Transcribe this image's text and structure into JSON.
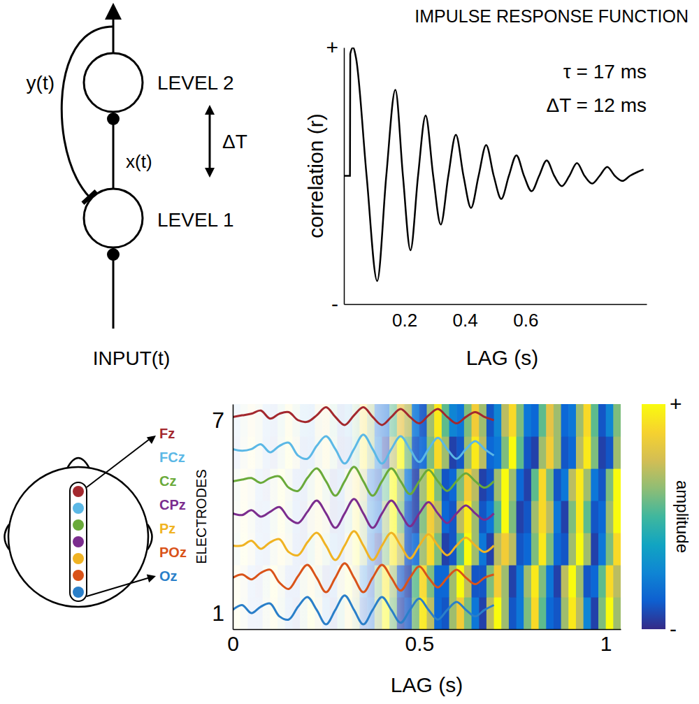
{
  "diagram": {
    "feedback": "y(t)",
    "feedforward": "x(t)",
    "delay": "ΔT",
    "level_2": "LEVEL 2",
    "level_1": "LEVEL 1",
    "input": "INPUT(t)"
  },
  "chart_data": [
    {
      "type": "line",
      "title": "IMPULSE RESPONSE FUNCTION",
      "x_label": "LAG (s)",
      "y_label": "correlation (r)",
      "annotations": [
        "τ = 17 ms",
        "ΔT = 12 ms"
      ],
      "x": [
        0,
        0.02,
        0.021,
        0.03,
        0.04,
        0.075,
        0.11,
        0.14,
        0.17,
        0.195,
        0.22,
        0.245,
        0.27,
        0.295,
        0.32,
        0.345,
        0.37,
        0.395,
        0.42,
        0.445,
        0.47,
        0.495,
        0.52,
        0.545,
        0.57,
        0.595,
        0.62,
        0.645,
        0.67,
        0.695,
        0.72,
        0.745,
        0.77,
        0.795,
        0.82,
        0.845,
        0.87,
        0.895,
        0.92,
        0.945,
        0.97,
        0.99
      ],
      "values": [
        0,
        0,
        0.95,
        1.0,
        0.92,
        0,
        -0.82,
        0,
        0.67,
        0,
        -0.58,
        0,
        0.47,
        0,
        -0.38,
        0,
        0.32,
        0,
        -0.25,
        0,
        0.24,
        0,
        -0.18,
        0,
        0.16,
        0,
        -0.12,
        0,
        0.12,
        0,
        -0.08,
        0,
        0.1,
        0,
        -0.06,
        0,
        0.07,
        0,
        -0.04,
        0,
        0.03,
        0.05
      ],
      "color": "#000000",
      "xlim": [
        0,
        1
      ],
      "xticks": [
        0.2,
        0.4,
        0.6
      ],
      "ylim": [
        -1,
        1
      ],
      "yticks": [
        {
          "value": -1,
          "label": "-"
        },
        {
          "value": 1,
          "label": "+"
        }
      ]
    },
    {
      "type": "line",
      "x_label": "LAG (s)",
      "y_label": "ELECTRODES",
      "legend": "left",
      "x": [
        0,
        0.025,
        0.05,
        0.075,
        0.1,
        0.125,
        0.15,
        0.175,
        0.2,
        0.225,
        0.25,
        0.275,
        0.3,
        0.325,
        0.35,
        0.375,
        0.4,
        0.425,
        0.45,
        0.475,
        0.5,
        0.525,
        0.55,
        0.575,
        0.6,
        0.625,
        0.65,
        0.675,
        0.7
      ],
      "series": [
        {
          "name": "Fz",
          "color": "#a3282e",
          "values": [
            7.1,
            7.15,
            7.2,
            7.3,
            7.05,
            7.2,
            7.25,
            7.0,
            6.95,
            7.15,
            7.4,
            7.1,
            6.85,
            7.15,
            7.4,
            7.1,
            6.85,
            7.1,
            7.35,
            7.1,
            6.9,
            7.15,
            7.35,
            7.1,
            6.9,
            7.1,
            7.25,
            7.1,
            7.0
          ]
        },
        {
          "name": "FCz",
          "color": "#5bb8e6",
          "values": [
            6.1,
            6.05,
            6.1,
            6.25,
            6.0,
            6.2,
            6.3,
            5.9,
            5.8,
            6.2,
            6.5,
            6.1,
            5.65,
            6.1,
            6.55,
            6.1,
            5.65,
            6.1,
            6.5,
            6.1,
            5.7,
            6.1,
            6.45,
            6.1,
            5.8,
            6.1,
            6.35,
            6.1,
            5.9
          ]
        },
        {
          "name": "Cz",
          "color": "#6aaa3a",
          "values": [
            5.1,
            5.15,
            5.2,
            5.05,
            5.2,
            5.25,
            4.9,
            4.8,
            5.2,
            5.5,
            5.1,
            4.65,
            5.1,
            5.55,
            5.1,
            4.65,
            5.1,
            5.5,
            5.1,
            4.7,
            5.1,
            5.45,
            5.1,
            4.8,
            5.1,
            5.35,
            5.1,
            4.9,
            5.1
          ]
        },
        {
          "name": "CPz",
          "color": "#7b2d8e",
          "values": [
            4.1,
            4.05,
            4.2,
            4.0,
            4.15,
            4.3,
            3.95,
            3.8,
            4.15,
            4.5,
            4.1,
            3.65,
            4.1,
            4.55,
            4.1,
            3.65,
            4.1,
            4.5,
            4.1,
            3.7,
            4.1,
            4.45,
            4.1,
            3.8,
            4.1,
            4.35,
            4.1,
            3.9,
            4.1
          ]
        },
        {
          "name": "Pz",
          "color": "#f0b323",
          "values": [
            3.1,
            3.1,
            3.25,
            3.0,
            3.2,
            3.3,
            2.9,
            2.8,
            3.2,
            3.5,
            3.1,
            2.65,
            3.1,
            3.55,
            3.1,
            2.65,
            3.1,
            3.5,
            3.1,
            2.7,
            3.1,
            3.45,
            3.1,
            2.8,
            3.1,
            3.35,
            3.1,
            2.9,
            3.1
          ]
        },
        {
          "name": "POz",
          "color": "#d95319",
          "values": [
            2.1,
            2.2,
            2.05,
            2.25,
            2.35,
            1.95,
            1.75,
            2.15,
            2.5,
            2.1,
            1.65,
            2.1,
            2.55,
            2.1,
            1.65,
            2.1,
            2.5,
            2.1,
            1.7,
            2.1,
            2.45,
            2.1,
            1.8,
            2.1,
            2.35,
            2.1,
            1.9,
            2.1,
            2.2
          ]
        },
        {
          "name": "Oz",
          "color": "#2a7fc9",
          "values": [
            1.1,
            1.25,
            1.0,
            1.2,
            1.3,
            0.9,
            0.8,
            1.2,
            1.5,
            1.1,
            0.65,
            1.1,
            1.55,
            1.1,
            0.65,
            1.1,
            1.5,
            1.1,
            0.7,
            1.1,
            1.45,
            1.1,
            0.8,
            1.1,
            1.35,
            1.1,
            0.9,
            1.1,
            1.25
          ]
        }
      ],
      "xlim": [
        0,
        1.04
      ],
      "xticks": [
        0,
        0.5,
        1
      ],
      "ylim": [
        0.5,
        7.5
      ],
      "yticks": [
        1,
        7
      ],
      "heatmap": {
        "x_edges": [
          0,
          0.02,
          0.04,
          0.06,
          0.08,
          0.1,
          0.12,
          0.14,
          0.16,
          0.18,
          0.2,
          0.22,
          0.24,
          0.26,
          0.28,
          0.3,
          0.32,
          0.34,
          0.36,
          0.38,
          0.4,
          0.42,
          0.44,
          0.46,
          0.48,
          0.5,
          0.52,
          0.54,
          0.56,
          0.58,
          0.6,
          0.62,
          0.64,
          0.66,
          0.68,
          0.7,
          0.72,
          0.74,
          0.76,
          0.78,
          0.8,
          0.82,
          0.84,
          0.86,
          0.88,
          0.9,
          0.92,
          0.94,
          0.96,
          0.98,
          1,
          1.02,
          1.04
        ],
        "y": [
          1,
          2,
          3,
          4,
          5,
          6,
          7
        ],
        "values": [
          [
            1.0,
            0.3,
            -0.8,
            -0.8,
            0.3,
            0.9,
            0.2,
            -0.7,
            -0.9,
            0.2,
            1.0,
            0.4,
            -0.6,
            -0.9,
            0.1,
            0.8,
            0.3,
            -0.8,
            -0.7,
            0.3,
            1.0,
            0.2,
            -0.9,
            -0.8,
            0.2,
            0.9,
            0.4,
            -0.7,
            -0.8,
            0.3,
            0.7,
            0.2,
            -0.6,
            -0.9,
            0.4,
            1.0,
            0.3,
            -0.8,
            -0.6,
            0.2,
            0.8,
            0.1,
            -0.7,
            -0.8,
            0.3,
            0.9,
            0.4,
            -0.5,
            -0.9,
            0.2,
            1.0,
            0.3
          ],
          [
            0.9,
            0.4,
            -0.7,
            -0.9,
            0.2,
            1.0,
            0.3,
            -0.8,
            -0.8,
            0.3,
            0.8,
            0.2,
            -0.9,
            -0.7,
            0.4,
            1.0,
            0.4,
            -0.6,
            -0.8,
            0.2,
            0.9,
            0.3,
            -0.8,
            -0.9,
            0.1,
            0.8,
            0.2,
            -0.7,
            -0.7,
            0.3,
            1.0,
            0.4,
            -0.8,
            -0.8,
            0.2,
            0.7,
            0.3,
            -0.9,
            -0.6,
            0.3,
            0.9,
            0.2,
            -0.6,
            -0.9,
            0.4,
            1.0,
            0.3,
            -0.8,
            -0.7,
            0.1,
            0.8,
            0.4
          ],
          [
            0.2,
            1.0,
            0.4,
            -0.7,
            -0.8,
            0.3,
            0.9,
            0.3,
            -0.8,
            -0.9,
            0.1,
            0.8,
            0.2,
            -0.6,
            -0.8,
            0.4,
            1.0,
            0.3,
            -0.7,
            -0.9,
            0.2,
            0.9,
            0.4,
            -0.8,
            -0.7,
            0.3,
            0.8,
            0.2,
            -0.9,
            -0.8,
            0.1,
            1.0,
            0.3,
            -0.6,
            -0.9,
            0.4,
            0.7,
            0.4,
            -0.8,
            -0.7,
            0.2,
            0.9,
            0.2,
            -0.7,
            -0.8,
            0.3,
            1.0,
            0.3,
            -0.9,
            -0.6,
            0.2,
            0.8
          ],
          [
            0.3,
            0.9,
            0.3,
            -0.8,
            -0.7,
            0.2,
            1.0,
            0.2,
            -0.7,
            -0.9,
            0.4,
            0.8,
            0.4,
            -0.9,
            -0.8,
            0.1,
            0.9,
            0.3,
            -0.6,
            -0.7,
            0.3,
            1.0,
            0.2,
            -0.8,
            -0.9,
            0.2,
            0.7,
            0.4,
            -0.7,
            -0.8,
            0.4,
            0.9,
            0.3,
            -0.8,
            -0.6,
            0.1,
            1.0,
            0.2,
            -0.9,
            -0.8,
            0.3,
            0.8,
            0.4,
            -0.6,
            -0.9,
            0.2,
            0.9,
            0.1,
            -0.8,
            -0.7,
            0.3,
            1.0
          ],
          [
            0.2,
            0.8,
            0.4,
            -0.7,
            -0.9,
            0.3,
            1.0,
            0.3,
            -0.8,
            -0.8,
            0.2,
            0.9,
            0.2,
            -0.9,
            -0.7,
            0.4,
            0.8,
            0.4,
            -0.7,
            -0.8,
            0.1,
            1.0,
            0.3,
            -0.6,
            -0.9,
            0.3,
            0.9,
            0.2,
            -0.8,
            -0.7,
            0.2,
            0.7,
            0.4,
            -0.9,
            -0.8,
            0.3,
            1.0,
            0.3,
            -0.7,
            -0.9,
            0.1,
            0.8,
            0.2,
            -0.8,
            -0.6,
            0.4,
            0.9,
            0.3,
            -0.6,
            -0.8,
            0.2,
            1.0
          ],
          [
            -0.8,
            0.3,
            0.9,
            0.3,
            -0.7,
            -0.9,
            0.2,
            1.0,
            0.4,
            -0.8,
            -0.7,
            0.3,
            0.8,
            0.2,
            -0.9,
            -0.8,
            0.1,
            0.9,
            0.3,
            -0.6,
            -0.9,
            0.4,
            1.0,
            0.2,
            -0.8,
            -0.7,
            0.2,
            0.8,
            0.3,
            -0.9,
            -0.8,
            0.3,
            0.9,
            0.4,
            -0.7,
            -0.6,
            0.2,
            1.0,
            0.1,
            -0.8,
            -0.9,
            0.3,
            0.7,
            0.3,
            -0.8,
            -0.7,
            0.4,
            0.9,
            0.2,
            -0.9,
            -0.8,
            0.3
          ],
          [
            -0.6,
            0.2,
            0.7,
            0.3,
            -0.6,
            -0.8,
            0.1,
            0.9,
            0.2,
            -0.5,
            -0.6,
            0.4,
            0.6,
            0.1,
            -0.8,
            -0.5,
            0.2,
            0.8,
            0.3,
            -0.7,
            -0.7,
            0.1,
            0.6,
            0.4,
            -0.6,
            -0.8,
            0.3,
            0.9,
            0.1,
            -0.5,
            -0.6,
            0.2,
            0.7,
            0.3,
            -0.8,
            -0.5,
            0.4,
            0.8,
            0.2,
            -0.6,
            -0.7,
            0.1,
            0.6,
            0.3,
            -0.7,
            -0.6,
            0.3,
            0.8,
            0.1,
            -0.8,
            -0.5,
            0.2
          ]
        ]
      },
      "colorbar": {
        "range": [
          -1,
          1
        ],
        "ticks": [
          {
            "value": -1,
            "label": "-"
          },
          {
            "value": 1,
            "label": "+"
          }
        ],
        "label": "amplitude"
      }
    }
  ]
}
